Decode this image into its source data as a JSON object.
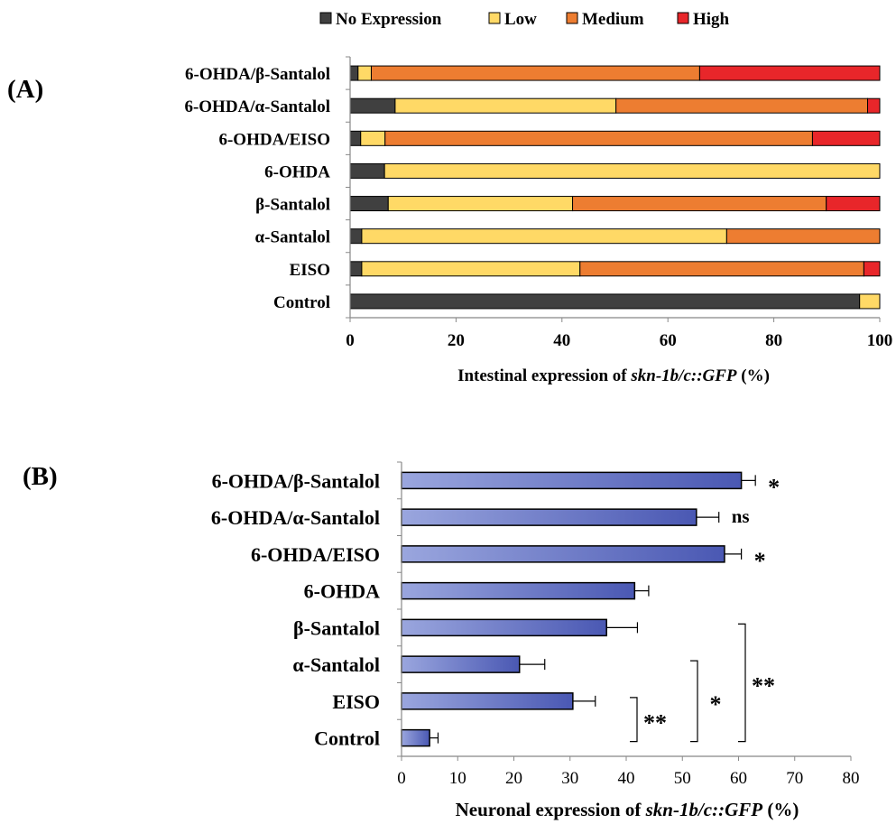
{
  "chart_data": [
    {
      "type": "bar",
      "orientation": "horizontal",
      "stacked": true,
      "panel_label": "(A)",
      "categories": [
        "6-OHDA/β-Santalol",
        "6-OHDA/α-Santalol",
        "6-OHDA/EISO",
        "6-OHDA",
        "β-Santalol",
        "α-Santalol",
        "EISO",
        "Control"
      ],
      "series": [
        {
          "name": "No Expression",
          "color": "#404040",
          "values": [
            1.5,
            8.5,
            2,
            6.5,
            7.2,
            2.2,
            2.2,
            96.2
          ]
        },
        {
          "name": "Low",
          "color": "#FFD966",
          "values": [
            2.5,
            41.7,
            4.6,
            93.5,
            34.8,
            68.9,
            41.2,
            3.8
          ]
        },
        {
          "name": "Medium",
          "color": "#ED7D31",
          "values": [
            62,
            47.5,
            80.7,
            0,
            47.9,
            28.9,
            53.6,
            0
          ]
        },
        {
          "name": "High",
          "color": "#E8262A",
          "values": [
            34,
            2.3,
            12.7,
            0,
            10.1,
            0,
            3,
            0
          ]
        }
      ],
      "xlim": [
        0,
        100
      ],
      "xticks": [
        0,
        20,
        40,
        60,
        80,
        100
      ],
      "xlabel_prefix": "Intestinal expression of ",
      "xlabel_italic": "skn-1b/c::GFP",
      "xlabel_suffix": " (%)",
      "legend_position": "top",
      "grid": false
    },
    {
      "type": "bar",
      "orientation": "horizontal",
      "panel_label": "(B)",
      "categories": [
        "6-OHDA/β-Santalol",
        "6-OHDA/α-Santalol",
        "6-OHDA/EISO",
        "6-OHDA",
        "β-Santalol",
        "α-Santalol",
        "EISO",
        "Control"
      ],
      "values": [
        60.5,
        52.5,
        57.5,
        41.5,
        36.5,
        21,
        30.5,
        5
      ],
      "errors": [
        2.5,
        4,
        3,
        2.5,
        5.5,
        4.5,
        4,
        1.5
      ],
      "significance": [
        "*",
        "ns",
        "*",
        "",
        "",
        "",
        "",
        ""
      ],
      "comparison_brackets": [
        {
          "from": "EISO",
          "to": "Control",
          "label": "**"
        },
        {
          "from": "α-Santalol",
          "to": "Control",
          "label": "*"
        },
        {
          "from": "β-Santalol",
          "to": "Control",
          "label": "**"
        }
      ],
      "bar_color_light": "#9AA6DE",
      "bar_color_dark": "#4A58B3",
      "xlim": [
        0,
        80
      ],
      "xticks": [
        0,
        10,
        20,
        30,
        40,
        50,
        60,
        70,
        80
      ],
      "xlabel_prefix": "Neuronal expression of ",
      "xlabel_italic": "skn-1b/c::GFP",
      "xlabel_suffix": " (%)",
      "grid": false
    }
  ]
}
